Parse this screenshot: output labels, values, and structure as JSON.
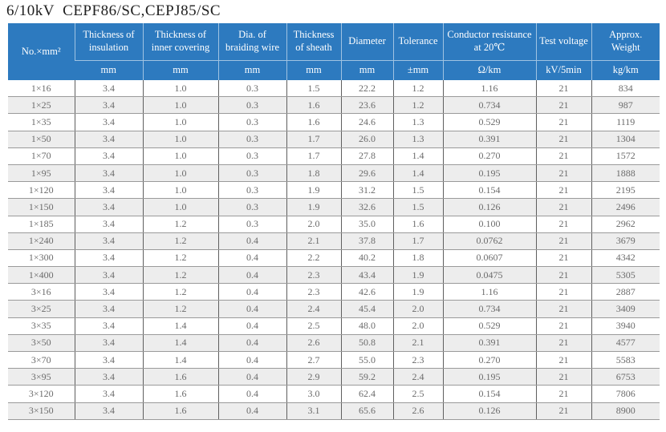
{
  "title": "6/10kV  CEPF86/SC,CEPJ85/SC",
  "colors": {
    "header_bg": "#2D7ABF",
    "header_text": "#FFFFFF",
    "body_text": "#6B6B6B",
    "stripe_bg": "#EDEDED",
    "row_line": "#9A9A9A",
    "col_line": "#5F5F5F"
  },
  "table": {
    "columns": [
      {
        "label": "No.×mm²",
        "unit": null
      },
      {
        "label": "Thickness of insulation",
        "unit": "mm"
      },
      {
        "label": "Thickness of inner covering",
        "unit": "mm"
      },
      {
        "label": "Dia. of braiding wire",
        "unit": "mm"
      },
      {
        "label": "Thickness of sheath",
        "unit": "mm"
      },
      {
        "label": "Diameter",
        "unit": "mm"
      },
      {
        "label": "Tolerance",
        "unit": "±mm"
      },
      {
        "label": "Conductor resistance at 20℃",
        "unit": "Ω/km"
      },
      {
        "label": "Test voltage",
        "unit": "kV/5min"
      },
      {
        "label": "Approx. Weight",
        "unit": "kg/km"
      }
    ],
    "rows": [
      [
        "1×16",
        "3.4",
        "1.0",
        "0.3",
        "1.5",
        "22.2",
        "1.2",
        "1.16",
        "21",
        "834"
      ],
      [
        "1×25",
        "3.4",
        "1.0",
        "0.3",
        "1.6",
        "23.6",
        "1.2",
        "0.734",
        "21",
        "987"
      ],
      [
        "1×35",
        "3.4",
        "1.0",
        "0.3",
        "1.6",
        "24.6",
        "1.3",
        "0.529",
        "21",
        "1119"
      ],
      [
        "1×50",
        "3.4",
        "1.0",
        "0.3",
        "1.7",
        "26.0",
        "1.3",
        "0.391",
        "21",
        "1304"
      ],
      [
        "1×70",
        "3.4",
        "1.0",
        "0.3",
        "1.7",
        "27.8",
        "1.4",
        "0.270",
        "21",
        "1572"
      ],
      [
        "1×95",
        "3.4",
        "1.0",
        "0.3",
        "1.8",
        "29.6",
        "1.4",
        "0.195",
        "21",
        "1888"
      ],
      [
        "1×120",
        "3.4",
        "1.0",
        "0.3",
        "1.9",
        "31.2",
        "1.5",
        "0.154",
        "21",
        "2195"
      ],
      [
        "1×150",
        "3.4",
        "1.0",
        "0.3",
        "1.9",
        "32.6",
        "1.5",
        "0.126",
        "21",
        "2496"
      ],
      [
        "1×185",
        "3.4",
        "1.2",
        "0.3",
        "2.0",
        "35.0",
        "1.6",
        "0.100",
        "21",
        "2962"
      ],
      [
        "1×240",
        "3.4",
        "1.2",
        "0.4",
        "2.1",
        "37.8",
        "1.7",
        "0.0762",
        "21",
        "3679"
      ],
      [
        "1×300",
        "3.4",
        "1.2",
        "0.4",
        "2.2",
        "40.2",
        "1.8",
        "0.0607",
        "21",
        "4342"
      ],
      [
        "1×400",
        "3.4",
        "1.2",
        "0.4",
        "2.3",
        "43.4",
        "1.9",
        "0.0475",
        "21",
        "5305"
      ],
      [
        "3×16",
        "3.4",
        "1.2",
        "0.4",
        "2.3",
        "42.6",
        "1.9",
        "1.16",
        "21",
        "2887"
      ],
      [
        "3×25",
        "3.4",
        "1.2",
        "0.4",
        "2.4",
        "45.4",
        "2.0",
        "0.734",
        "21",
        "3409"
      ],
      [
        "3×35",
        "3.4",
        "1.4",
        "0.4",
        "2.5",
        "48.0",
        "2.0",
        "0.529",
        "21",
        "3940"
      ],
      [
        "3×50",
        "3.4",
        "1.4",
        "0.4",
        "2.6",
        "50.8",
        "2.1",
        "0.391",
        "21",
        "4577"
      ],
      [
        "3×70",
        "3.4",
        "1.4",
        "0.4",
        "2.7",
        "55.0",
        "2.3",
        "0.270",
        "21",
        "5583"
      ],
      [
        "3×95",
        "3.4",
        "1.6",
        "0.4",
        "2.9",
        "59.2",
        "2.4",
        "0.195",
        "21",
        "6753"
      ],
      [
        "3×120",
        "3.4",
        "1.6",
        "0.4",
        "3.0",
        "62.4",
        "2.5",
        "0.154",
        "21",
        "7806"
      ],
      [
        "3×150",
        "3.4",
        "1.6",
        "0.4",
        "3.1",
        "65.6",
        "2.6",
        "0.126",
        "21",
        "8900"
      ]
    ]
  }
}
